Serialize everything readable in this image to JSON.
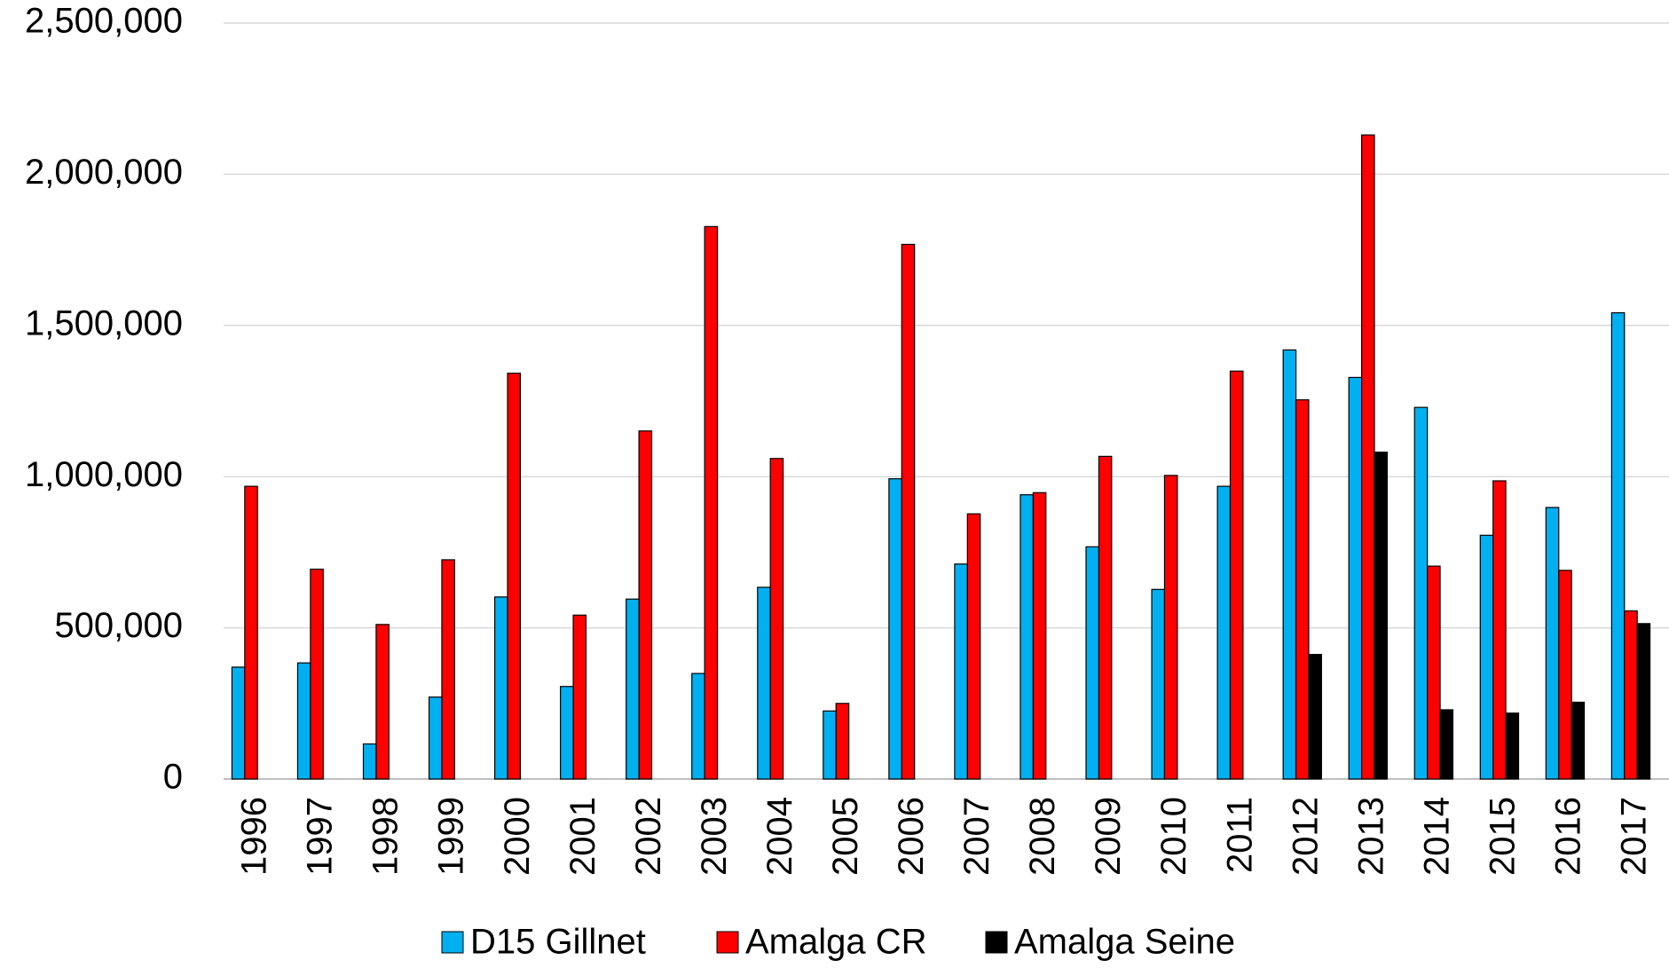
{
  "chart_data": {
    "type": "bar",
    "categories": [
      "1996",
      "1997",
      "1998",
      "1999",
      "2000",
      "2001",
      "2002",
      "2003",
      "2004",
      "2005",
      "2006",
      "2007",
      "2008",
      "2009",
      "2010",
      "2011",
      "2012",
      "2013",
      "2014",
      "2015",
      "2016",
      "2017"
    ],
    "series": [
      {
        "name": "D15 Gillnet",
        "color": "#00b0f0",
        "values": [
          370000,
          384000,
          116000,
          271000,
          602000,
          306000,
          595000,
          349000,
          634000,
          225000,
          993000,
          711000,
          940000,
          768000,
          627000,
          968000,
          1419000,
          1328000,
          1229000,
          806000,
          898000,
          1542000
        ]
      },
      {
        "name": "Amalga CR",
        "color": "#ff0000",
        "values": [
          968000,
          694000,
          511000,
          725000,
          1342000,
          542000,
          1151000,
          1827000,
          1060000,
          250000,
          1768000,
          877000,
          947000,
          1067000,
          1004000,
          1349000,
          1254000,
          2130000,
          704000,
          986000,
          690000,
          556000
        ]
      },
      {
        "name": "Amalga Seine",
        "color": "#000000",
        "values": [
          null,
          null,
          null,
          null,
          null,
          null,
          null,
          null,
          null,
          null,
          null,
          null,
          null,
          null,
          null,
          null,
          412000,
          1081000,
          229000,
          218000,
          254000,
          514000
        ]
      }
    ],
    "ylim": [
      0,
      2500000
    ],
    "yticks": [
      0,
      {
        "value": 500000,
        "label": "500,000"
      },
      {
        "value": 1000000,
        "label": "1,000,000"
      },
      {
        "value": 1500000,
        "label": "1,500,000"
      },
      {
        "value": 2000000,
        "label": "2,000,000"
      },
      {
        "value": 2500000,
        "label": "2,500,000"
      }
    ],
    "grid": true,
    "legend": "bottom"
  }
}
